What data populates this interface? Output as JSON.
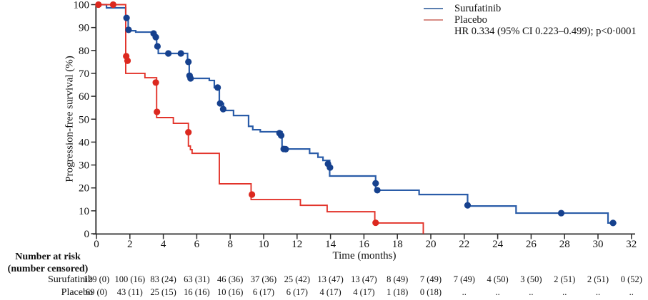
{
  "chart_data": {
    "type": "line",
    "subtype": "kaplan-meier-step",
    "title": "",
    "xlabel": "Time (months)",
    "ylabel": "Progression-free survival (%)",
    "xlim": [
      0,
      32
    ],
    "ylim": [
      0,
      100
    ],
    "xticks": [
      0,
      2,
      4,
      6,
      8,
      10,
      12,
      14,
      16,
      18,
      20,
      22,
      24,
      26,
      28,
      30,
      32
    ],
    "yticks": [
      0,
      10,
      20,
      30,
      40,
      50,
      60,
      70,
      80,
      90,
      100
    ],
    "grid": false,
    "legend_position": "top-right",
    "annotation": "HR 0.334 (95% CI 0.223–0.499); p<0·0001",
    "series": [
      {
        "name": "Surufatinib",
        "color": "#2a5ca8",
        "marker_color": "#16418e",
        "legend_color": "#5b7fb0",
        "start_value": 100,
        "steps": [
          [
            0.6,
            98.6
          ],
          [
            1.75,
            94.2
          ],
          [
            1.9,
            88.6
          ],
          [
            2.35,
            88.0
          ],
          [
            3.45,
            85.8
          ],
          [
            3.6,
            81.8
          ],
          [
            3.7,
            78.7
          ],
          [
            5.45,
            75.0
          ],
          [
            5.55,
            67.8
          ],
          [
            6.75,
            66.9
          ],
          [
            7.05,
            63.8
          ],
          [
            7.35,
            56.9
          ],
          [
            7.6,
            53.8
          ],
          [
            8.2,
            51.6
          ],
          [
            9.1,
            46.9
          ],
          [
            9.35,
            45.4
          ],
          [
            9.8,
            44.5
          ],
          [
            11.1,
            37.0
          ],
          [
            12.75,
            35.1
          ],
          [
            13.25,
            33.4
          ],
          [
            13.55,
            32.0
          ],
          [
            13.95,
            25.2
          ],
          [
            16.7,
            19.0
          ],
          [
            19.3,
            17.1
          ],
          [
            22.2,
            12.1
          ],
          [
            25.1,
            9.0
          ],
          [
            30.6,
            4.7
          ]
        ],
        "end_time": 31.1,
        "censor_marks": [
          [
            1.8,
            94.2
          ],
          [
            1.92,
            89.0
          ],
          [
            3.42,
            87.4
          ],
          [
            3.55,
            85.8
          ],
          [
            3.65,
            81.8
          ],
          [
            4.3,
            78.7
          ],
          [
            5.05,
            78.7
          ],
          [
            5.5,
            75.0
          ],
          [
            5.57,
            69.0
          ],
          [
            5.63,
            67.8
          ],
          [
            7.25,
            63.8
          ],
          [
            7.4,
            56.9
          ],
          [
            7.58,
            54.4
          ],
          [
            10.95,
            43.9
          ],
          [
            11.05,
            42.9
          ],
          [
            11.2,
            37.0
          ],
          [
            11.32,
            36.9
          ],
          [
            13.85,
            30.5
          ],
          [
            13.97,
            28.9
          ],
          [
            16.7,
            22.0
          ],
          [
            16.8,
            19.0
          ],
          [
            22.2,
            12.4
          ],
          [
            27.8,
            9.0
          ],
          [
            30.9,
            4.7
          ]
        ]
      },
      {
        "name": "Placebo",
        "color": "#e2332a",
        "marker_color": "#dc281f",
        "legend_color": "#d88c85",
        "start_value": 100,
        "steps": [
          [
            1.75,
            70.0
          ],
          [
            2.9,
            68.1
          ],
          [
            3.6,
            50.7
          ],
          [
            4.6,
            48.2
          ],
          [
            5.5,
            38.3
          ],
          [
            5.62,
            36.7
          ],
          [
            5.72,
            35.1
          ],
          [
            7.35,
            21.8
          ],
          [
            9.25,
            14.9
          ],
          [
            12.2,
            12.4
          ],
          [
            13.8,
            9.6
          ],
          [
            16.65,
            4.7
          ],
          [
            19.55,
            0
          ]
        ],
        "end_time": 19.55,
        "censor_marks": [
          [
            0.12,
            100
          ],
          [
            1.0,
            100
          ],
          [
            1.78,
            77.5
          ],
          [
            1.86,
            75.5
          ],
          [
            3.55,
            66.0
          ],
          [
            3.62,
            53.2
          ],
          [
            5.5,
            44.3
          ],
          [
            9.3,
            17.1
          ],
          [
            16.7,
            4.8
          ]
        ]
      }
    ]
  },
  "risk_table": {
    "title_line1": "Number at risk",
    "title_line2": "(number censored)",
    "times": [
      0,
      2,
      4,
      6,
      8,
      10,
      12,
      14,
      16,
      18,
      20,
      22,
      24,
      26,
      28,
      30,
      32
    ],
    "rows": [
      {
        "label": "Surufatinib",
        "values": [
          "129 (0)",
          "100 (16)",
          "83 (24)",
          "63 (31)",
          "46 (36)",
          "37 (36)",
          "25 (42)",
          "13 (47)",
          "13 (47)",
          "8 (49)",
          "7 (49)",
          "7 (49)",
          "4 (50)",
          "3 (50)",
          "2 (51)",
          "2 (51)",
          "0 (52)"
        ]
      },
      {
        "label": "Placebo",
        "values": [
          "69 (0)",
          "43 (11)",
          "25 (15)",
          "16 (16)",
          "10 (16)",
          "6 (17)",
          "6 (17)",
          "4 (17)",
          "4 (17)",
          "1 (18)",
          "0 (18)",
          "..",
          "..",
          "..",
          "..",
          "..",
          ".."
        ]
      }
    ]
  }
}
